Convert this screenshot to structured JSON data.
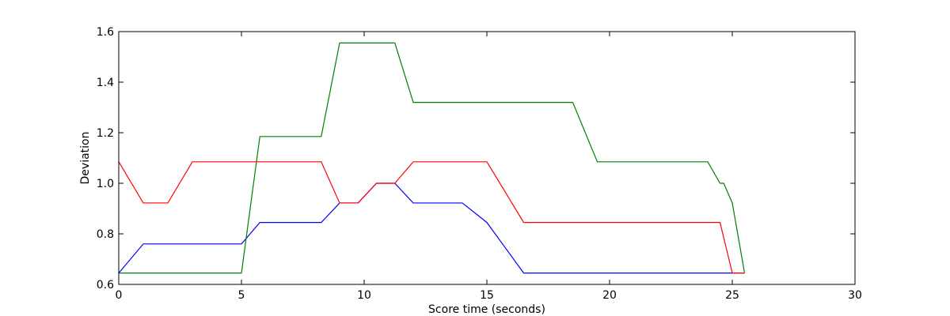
{
  "chart_data": {
    "type": "line",
    "title": "",
    "xlabel": "Score time (seconds)",
    "ylabel": "Deviation",
    "xlim": [
      0,
      30
    ],
    "ylim": [
      0.6,
      1.6
    ],
    "xticks": [
      0,
      5,
      10,
      15,
      20,
      25,
      30
    ],
    "yticks": [
      0.6,
      0.8,
      1.0,
      1.2,
      1.4,
      1.6
    ],
    "xtick_labels": [
      "0",
      "5",
      "10",
      "15",
      "20",
      "25",
      "30"
    ],
    "ytick_labels": [
      "0.6",
      "0.8",
      "1.0",
      "1.2",
      "1.4",
      "1.6"
    ],
    "grid": false,
    "legend": "none",
    "series": [
      {
        "name": "blue",
        "color": "#0000ff",
        "points": [
          [
            0,
            0.645
          ],
          [
            1,
            0.76
          ],
          [
            5,
            0.76
          ],
          [
            5.75,
            0.845
          ],
          [
            8.25,
            0.845
          ],
          [
            9,
            0.922
          ],
          [
            9.75,
            0.922
          ],
          [
            10.5,
            1.0
          ],
          [
            11.25,
            1.0
          ],
          [
            12,
            0.922
          ],
          [
            14,
            0.922
          ],
          [
            15,
            0.845
          ],
          [
            16.5,
            0.645
          ],
          [
            25.5,
            0.645
          ]
        ]
      },
      {
        "name": "green",
        "color": "#008000",
        "points": [
          [
            0,
            0.645
          ],
          [
            5,
            0.645
          ],
          [
            5.75,
            1.185
          ],
          [
            8.25,
            1.185
          ],
          [
            9,
            1.555
          ],
          [
            11.25,
            1.555
          ],
          [
            12,
            1.32
          ],
          [
            18.5,
            1.32
          ],
          [
            19.5,
            1.085
          ],
          [
            24,
            1.085
          ],
          [
            24.5,
            1.0
          ],
          [
            24.65,
            1.0
          ],
          [
            25,
            0.922
          ],
          [
            25.5,
            0.645
          ]
        ]
      },
      {
        "name": "red",
        "color": "#ff0000",
        "points": [
          [
            0,
            1.085
          ],
          [
            1,
            0.922
          ],
          [
            2,
            0.922
          ],
          [
            3,
            1.085
          ],
          [
            8.25,
            1.085
          ],
          [
            9,
            0.922
          ],
          [
            9.75,
            0.922
          ],
          [
            10.5,
            1.0
          ],
          [
            11.25,
            1.0
          ],
          [
            12,
            1.085
          ],
          [
            15,
            1.085
          ],
          [
            16.5,
            0.845
          ],
          [
            24.5,
            0.845
          ],
          [
            25,
            0.645
          ],
          [
            25.5,
            0.645
          ]
        ]
      }
    ]
  }
}
